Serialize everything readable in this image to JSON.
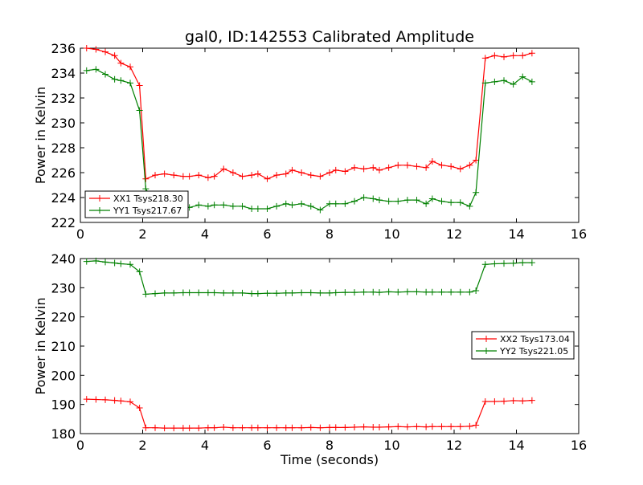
{
  "figure": {
    "title": "gal0, ID:142553 Calibrated Amplitude",
    "xlabel": "Time (seconds)"
  },
  "colors": {
    "red": "#ff0000",
    "green": "#008000"
  },
  "chart_data": [
    {
      "type": "line",
      "ylabel": "Power in Kelvin",
      "xlim": [
        0,
        16
      ],
      "ylim": [
        222,
        236
      ],
      "xticks": [
        0,
        2,
        4,
        6,
        8,
        10,
        12,
        14,
        16
      ],
      "yticks": [
        222,
        224,
        226,
        228,
        230,
        232,
        234,
        236
      ],
      "legend_position": "lower-left",
      "x": [
        0.2,
        0.5,
        0.8,
        1.1,
        1.3,
        1.6,
        1.9,
        2.1,
        2.4,
        2.7,
        3.0,
        3.3,
        3.5,
        3.8,
        4.1,
        4.3,
        4.6,
        4.9,
        5.2,
        5.5,
        5.7,
        6.0,
        6.3,
        6.6,
        6.8,
        7.1,
        7.4,
        7.7,
        8.0,
        8.2,
        8.5,
        8.8,
        9.1,
        9.4,
        9.6,
        9.9,
        10.2,
        10.5,
        10.8,
        11.1,
        11.3,
        11.6,
        11.9,
        12.2,
        12.5,
        12.7,
        13.0,
        13.3,
        13.6,
        13.9,
        14.2,
        14.5
      ],
      "series": [
        {
          "name": "XX1 Tsys218.30",
          "color": "#ff0000",
          "values": [
            236.0,
            235.9,
            235.7,
            235.4,
            234.8,
            234.5,
            233.0,
            225.5,
            225.8,
            225.9,
            225.8,
            225.7,
            225.7,
            225.8,
            225.6,
            225.7,
            226.3,
            226.0,
            225.7,
            225.8,
            225.9,
            225.5,
            225.8,
            225.9,
            226.2,
            226.0,
            225.8,
            225.7,
            226.0,
            226.2,
            226.1,
            226.4,
            226.3,
            226.4,
            226.2,
            226.4,
            226.6,
            226.6,
            226.5,
            226.4,
            226.9,
            226.6,
            226.5,
            226.3,
            226.6,
            227.0,
            235.2,
            235.4,
            235.3,
            235.4,
            235.4,
            235.6
          ]
        },
        {
          "name": "YY1 Tsys217.67",
          "color": "#008000",
          "values": [
            234.2,
            234.3,
            233.9,
            233.5,
            233.4,
            233.2,
            231.0,
            224.7,
            223.5,
            223.4,
            223.3,
            223.3,
            223.2,
            223.4,
            223.3,
            223.4,
            223.4,
            223.3,
            223.3,
            223.1,
            223.1,
            223.1,
            223.3,
            223.5,
            223.4,
            223.5,
            223.3,
            223.0,
            223.5,
            223.5,
            223.5,
            223.7,
            224.0,
            223.9,
            223.8,
            223.7,
            223.7,
            223.8,
            223.8,
            223.5,
            223.9,
            223.7,
            223.6,
            223.6,
            223.3,
            224.4,
            233.2,
            233.3,
            233.4,
            233.1,
            233.7,
            233.3
          ]
        }
      ]
    },
    {
      "type": "line",
      "ylabel": "Power in Kelvin",
      "xlim": [
        0,
        16
      ],
      "ylim": [
        180,
        240
      ],
      "xticks": [
        0,
        2,
        4,
        6,
        8,
        10,
        12,
        14,
        16
      ],
      "yticks": [
        180,
        190,
        200,
        210,
        220,
        230,
        240
      ],
      "legend_position": "center-right",
      "x": [
        0.2,
        0.5,
        0.8,
        1.1,
        1.3,
        1.6,
        1.9,
        2.1,
        2.4,
        2.7,
        3.0,
        3.3,
        3.5,
        3.8,
        4.1,
        4.3,
        4.6,
        4.9,
        5.2,
        5.5,
        5.7,
        6.0,
        6.3,
        6.6,
        6.8,
        7.1,
        7.4,
        7.7,
        8.0,
        8.2,
        8.5,
        8.8,
        9.1,
        9.4,
        9.6,
        9.9,
        10.2,
        10.5,
        10.8,
        11.1,
        11.3,
        11.6,
        11.9,
        12.2,
        12.5,
        12.7,
        13.0,
        13.3,
        13.6,
        13.9,
        14.2,
        14.5
      ],
      "series": [
        {
          "name": "XX2 Tsys173.04",
          "color": "#ff0000",
          "values": [
            191.8,
            191.7,
            191.6,
            191.4,
            191.2,
            190.9,
            188.8,
            182.0,
            182.0,
            181.9,
            181.9,
            181.9,
            181.9,
            181.9,
            182.0,
            182.0,
            182.2,
            182.0,
            182.0,
            182.0,
            182.0,
            182.0,
            182.0,
            182.0,
            182.0,
            182.0,
            182.1,
            182.0,
            182.1,
            182.1,
            182.1,
            182.2,
            182.3,
            182.2,
            182.2,
            182.3,
            182.4,
            182.3,
            182.4,
            182.3,
            182.4,
            182.4,
            182.4,
            182.4,
            182.5,
            182.9,
            191.0,
            191.0,
            191.1,
            191.3,
            191.2,
            191.4
          ]
        },
        {
          "name": "YY2 Tsys221.05",
          "color": "#008000",
          "values": [
            239.0,
            239.2,
            238.8,
            238.5,
            238.2,
            238.0,
            235.5,
            227.8,
            228.0,
            228.2,
            228.2,
            228.3,
            228.3,
            228.3,
            228.3,
            228.3,
            228.2,
            228.2,
            228.2,
            228.0,
            228.0,
            228.1,
            228.1,
            228.2,
            228.2,
            228.3,
            228.3,
            228.2,
            228.2,
            228.3,
            228.4,
            228.4,
            228.5,
            228.5,
            228.4,
            228.6,
            228.5,
            228.6,
            228.6,
            228.5,
            228.5,
            228.5,
            228.5,
            228.5,
            228.5,
            229.0,
            238.0,
            238.2,
            238.3,
            238.4,
            238.6,
            238.6
          ]
        }
      ]
    }
  ]
}
